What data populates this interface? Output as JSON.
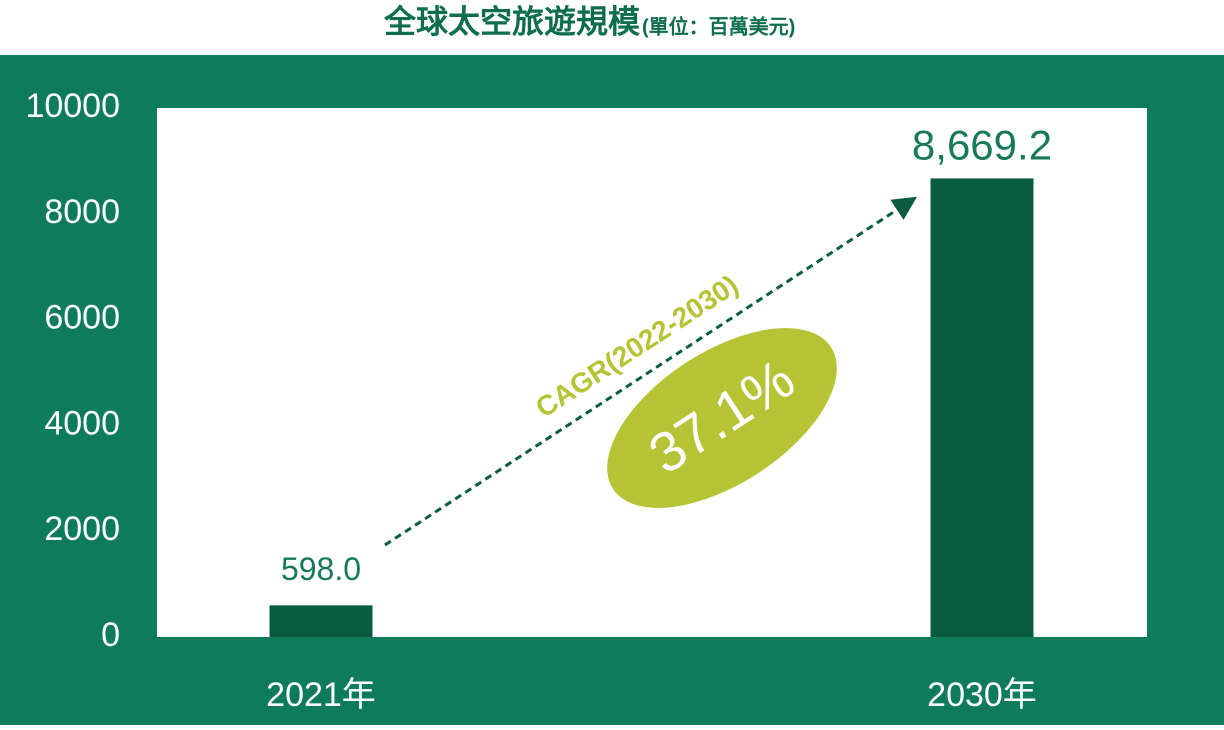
{
  "chart_data": {
    "type": "bar",
    "title": "全球太空旅遊規模",
    "subtitle": "(單位：百萬美元)",
    "categories": [
      "2021年",
      "2030年"
    ],
    "values": [
      598.0,
      8669.2
    ],
    "value_labels": [
      "598.0",
      "8,669.2"
    ],
    "color": "#0a5c40",
    "label_color": "#177a56",
    "background": "#0e7c5b",
    "plot_background": "#ffffff",
    "ylim": [
      0,
      10000
    ],
    "yticks": [
      0,
      2000,
      4000,
      6000,
      8000,
      10000
    ],
    "grid": false,
    "annotations": {
      "cagr_label": "CAGR(2022-2030)",
      "cagr_value": "37.1%",
      "color": "#b5c334"
    }
  }
}
